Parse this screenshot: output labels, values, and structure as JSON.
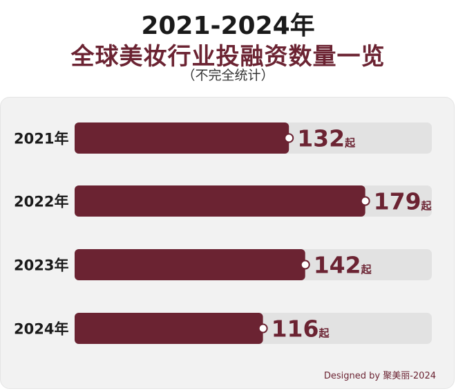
{
  "title": "2021-2024年",
  "subtitle": "全球美妆行业投融资数量一览",
  "note": "（不完全统计）",
  "credit": "Designed by 聚美丽-2024",
  "colors": {
    "bar": "#6b2332",
    "track": "#e2e2e2",
    "label": "#6b2332"
  },
  "chart_data": {
    "type": "bar",
    "orientation": "horizontal",
    "categories": [
      "2021年",
      "2022年",
      "2023年",
      "2024年"
    ],
    "values": [
      132,
      179,
      142,
      116
    ],
    "unit": "起",
    "xlim": [
      0,
      220
    ],
    "grid": false
  }
}
